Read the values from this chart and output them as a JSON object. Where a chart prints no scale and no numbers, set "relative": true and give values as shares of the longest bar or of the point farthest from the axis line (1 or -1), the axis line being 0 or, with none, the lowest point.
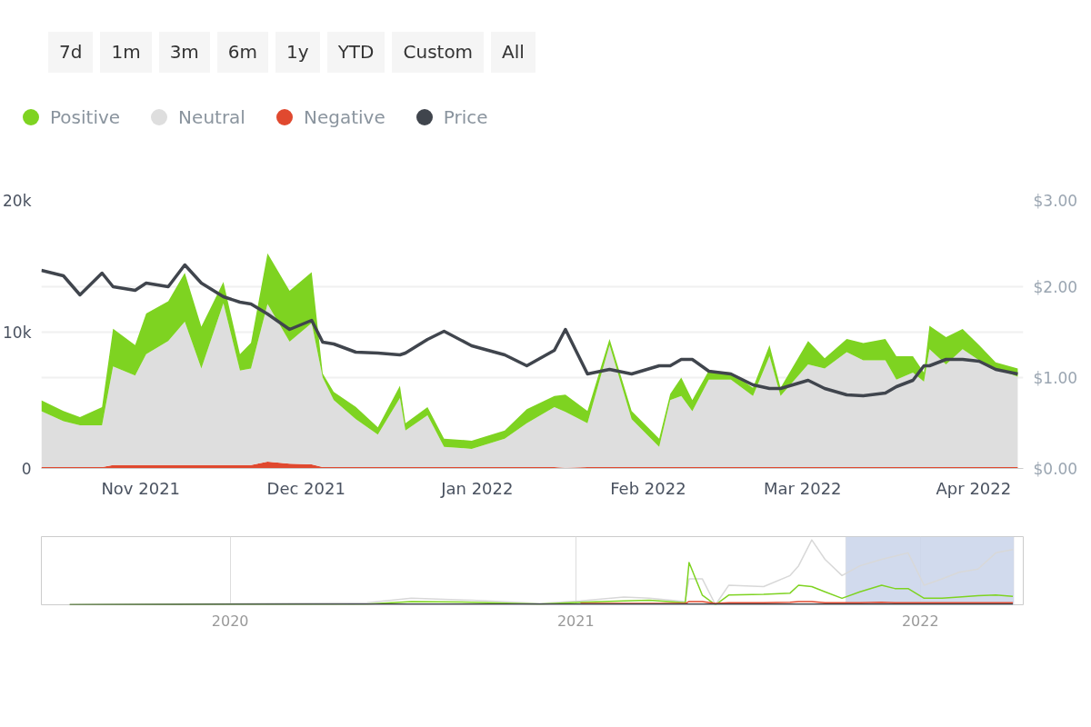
{
  "chart_data": [
    {
      "type": "area",
      "stacked": true,
      "legend": "top left",
      "grid": "y",
      "annotations": [
        "7d",
        "1m",
        "3m",
        "6m",
        "1y",
        "YTD",
        "Custom",
        "All"
      ],
      "x": [
        "2021-10-14",
        "2021-10-18",
        "2021-10-21",
        "2021-10-25",
        "2021-10-27",
        "2021-10-31",
        "2021-11-02",
        "2021-11-06",
        "2021-11-09",
        "2021-11-12",
        "2021-11-16",
        "2021-11-19",
        "2021-11-21",
        "2021-11-24",
        "2021-11-28",
        "2021-12-02",
        "2021-12-04",
        "2021-12-06",
        "2021-12-10",
        "2021-12-14",
        "2021-12-18",
        "2021-12-19",
        "2021-12-23",
        "2021-12-26",
        "2021-12-31",
        "2022-01-06",
        "2022-01-10",
        "2022-01-15",
        "2022-01-17",
        "2022-01-21",
        "2022-01-25",
        "2022-01-29",
        "2022-02-03",
        "2022-02-05",
        "2022-02-07",
        "2022-02-09",
        "2022-02-12",
        "2022-02-16",
        "2022-02-20",
        "2022-02-23",
        "2022-02-25",
        "2022-03-02",
        "2022-03-05",
        "2022-03-09",
        "2022-03-12",
        "2022-03-16",
        "2022-03-18",
        "2022-03-21",
        "2022-03-23",
        "2022-03-24",
        "2022-03-27",
        "2022-03-30",
        "2022-04-02",
        "2022-04-05",
        "2022-04-09"
      ],
      "xlim": [
        "2021-10-14",
        "2022-04-10"
      ],
      "xticks": [
        {
          "value": "2021-11-01",
          "label": "Nov 2021"
        },
        {
          "value": "2021-12-01",
          "label": "Dec 2021"
        },
        {
          "value": "2022-01-01",
          "label": "Jan 2022"
        },
        {
          "value": "2022-02-01",
          "label": "Feb 2022"
        },
        {
          "value": "2022-03-01",
          "label": "Mar 2022"
        },
        {
          "value": "2022-04-01",
          "label": "Apr 2022"
        }
      ],
      "ylim": [
        0,
        20000
      ],
      "yticks": [
        {
          "value": 0,
          "label": "0"
        },
        {
          "value": 10000,
          "label": "10k"
        },
        {
          "value": 20000,
          "label": "20k"
        }
      ],
      "y2lim": [
        0,
        3
      ],
      "y2ticks": [
        {
          "value": 0,
          "label": "$0.00"
        },
        {
          "value": 1,
          "label": "$1.00"
        },
        {
          "value": 2,
          "label": "$2.00"
        },
        {
          "value": 3,
          "label": "$3.00"
        }
      ],
      "series": [
        {
          "name": "Negative",
          "color": "#e0492f",
          "values": [
            100,
            100,
            100,
            100,
            250,
            250,
            250,
            250,
            250,
            250,
            250,
            250,
            250,
            500,
            350,
            300,
            100,
            100,
            100,
            100,
            100,
            100,
            100,
            100,
            100,
            100,
            100,
            100,
            50,
            100,
            100,
            100,
            100,
            100,
            100,
            100,
            100,
            100,
            100,
            100,
            100,
            100,
            100,
            100,
            100,
            100,
            100,
            100,
            100,
            100,
            100,
            100,
            100,
            100,
            100
          ]
        },
        {
          "name": "Neutral",
          "color": "#dedede",
          "values": [
            4100,
            3360,
            3060,
            3060,
            7240,
            6560,
            8130,
            9100,
            10520,
            7090,
            11860,
            6940,
            7090,
            11560,
            8950,
            10370,
            6560,
            4920,
            3510,
            2390,
            5070,
            2690,
            3800,
            1490,
            1340,
            2090,
            3210,
            4400,
            4100,
            3210,
            8950,
            3510,
            1490,
            4920,
            5220,
            4100,
            6420,
            6420,
            5220,
            8130,
            5220,
            7530,
            7240,
            8430,
            7830,
            7830,
            6420,
            6940,
            6270,
            8650,
            7530,
            8650,
            7830,
            7240,
            6640
          ]
        },
        {
          "name": "Positive",
          "color": "#7ed321",
          "values": [
            800,
            750,
            600,
            1340,
            2760,
            2240,
            2980,
            2910,
            3580,
            3060,
            1570,
            1190,
            1870,
            3730,
            3730,
            3730,
            300,
            600,
            900,
            520,
            900,
            520,
            600,
            600,
            600,
            600,
            1040,
            820,
            1270,
            900,
            450,
            600,
            600,
            450,
            1340,
            820,
            670,
            520,
            600,
            820,
            600,
            1720,
            750,
            970,
            1270,
            1570,
            1720,
            1190,
            670,
            1720,
            2010,
            1490,
            1120,
            450,
            600
          ]
        },
        {
          "name": "Price",
          "color": "#40454d",
          "type": "line",
          "axis": "y2",
          "values": [
            2.18,
            2.12,
            1.91,
            2.15,
            2.0,
            1.96,
            2.04,
            2.0,
            2.24,
            2.04,
            1.89,
            1.83,
            1.81,
            1.7,
            1.53,
            1.63,
            1.39,
            1.37,
            1.28,
            1.27,
            1.25,
            1.27,
            1.42,
            1.51,
            1.35,
            1.25,
            1.13,
            1.3,
            1.53,
            1.04,
            1.09,
            1.04,
            1.13,
            1.13,
            1.2,
            1.2,
            1.07,
            1.04,
            0.92,
            0.88,
            0.88,
            0.97,
            0.88,
            0.81,
            0.8,
            0.83,
            0.9,
            0.97,
            1.13,
            1.13,
            1.2,
            1.2,
            1.18,
            1.09,
            1.04
          ]
        }
      ]
    },
    {
      "type": "line",
      "relative": true,
      "tick_labels": "x",
      "grid": "x",
      "x": [
        "2019-07-15",
        "2020-05-25",
        "2020-07-11",
        "2020-09-13",
        "2020-11-24",
        "2021-01-06",
        "2021-02-21",
        "2021-03-20",
        "2021-04-27",
        "2021-05-01",
        "2021-05-15",
        "2021-05-29",
        "2021-06-12",
        "2021-07-19",
        "2021-08-16",
        "2021-08-25",
        "2021-09-08",
        "2021-09-22",
        "2021-10-10",
        "2021-10-29",
        "2021-11-21",
        "2021-12-05",
        "2021-12-19",
        "2022-01-05",
        "2022-01-24",
        "2022-02-11",
        "2022-03-03",
        "2022-03-22",
        "2022-04-09"
      ],
      "xlim": [
        "2019-06-15",
        "2022-04-20"
      ],
      "xticks": [
        {
          "value": "2020-01-01",
          "label": "2020"
        },
        {
          "value": "2021-01-01",
          "label": "2021"
        },
        {
          "value": "2022-01-01",
          "label": "2022"
        }
      ],
      "bands": [
        {
          "axis": "x",
          "from": "2021-10-14",
          "to": "2022-04-10",
          "color": "#ccd6eb"
        }
      ],
      "series": [
        {
          "color": "#d8d8d8",
          "values": [
            0,
            0.03,
            0.1,
            0.07,
            0.02,
            0.06,
            0.12,
            0.1,
            0.05,
            0.4,
            0.4,
            0,
            0.3,
            0.28,
            0.45,
            0.6,
            1.0,
            0.7,
            0.45,
            0.6,
            0.7,
            0.75,
            0.8,
            0.3,
            0.4,
            0.5,
            0.55,
            0.8,
            0.85
          ]
        },
        {
          "color": "#7ed321",
          "values": [
            0,
            0.01,
            0.05,
            0.04,
            0.01,
            0.04,
            0.06,
            0.07,
            0.03,
            0.65,
            0.15,
            0,
            0.15,
            0.16,
            0.18,
            0.3,
            0.28,
            0.2,
            0.1,
            0.2,
            0.3,
            0.25,
            0.25,
            0.1,
            0.1,
            0.12,
            0.14,
            0.15,
            0.13
          ]
        },
        {
          "color": "#e0492f",
          "values": [
            null,
            null,
            null,
            null,
            null,
            0.02,
            0.02,
            0.02,
            0.02,
            0.05,
            0.05,
            0.02,
            0.03,
            0.03,
            0.04,
            0.05,
            0.05,
            0.03,
            0.03,
            0.03,
            0.04,
            0.03,
            0.03,
            0.03,
            0.03,
            0.03,
            0.03,
            0.03,
            0.03
          ]
        },
        {
          "color": "#40454d",
          "values": [
            0,
            0.01,
            0.01,
            0.01,
            0.01,
            0.01,
            0.01,
            0.01,
            0.01,
            0.01,
            0.01,
            0.01,
            0.01,
            0.01,
            0.01,
            0.01,
            0.01,
            0.01,
            0.01,
            0.01,
            0.01,
            0.01,
            0.01,
            0.01,
            0.01,
            0.01,
            0.01,
            0.01,
            0.01
          ]
        }
      ]
    }
  ]
}
